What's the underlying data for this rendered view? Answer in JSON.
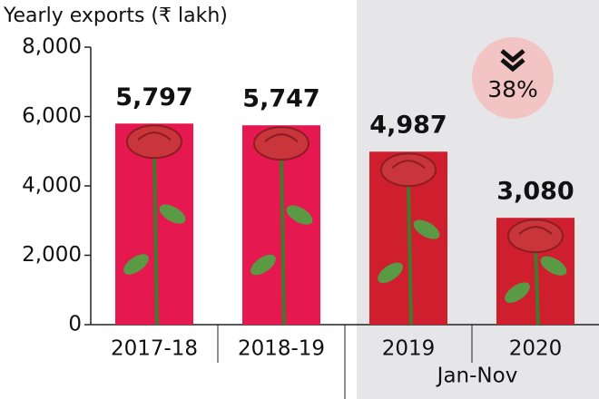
{
  "chart_data": {
    "type": "bar",
    "title": "Yearly exports (₹ lakh)",
    "categories": [
      "2017-18",
      "2018-19",
      "2019",
      "2020"
    ],
    "values": [
      5797,
      5747,
      4987,
      3080
    ],
    "value_labels": [
      "5,797",
      "5,747",
      "4,987",
      "3,080"
    ],
    "colors": [
      "#e5184f",
      "#e5184f",
      "#cf1f2e",
      "#cf1f2e"
    ],
    "ylim": [
      0,
      8000
    ],
    "yticks": [
      0,
      {
        "value": 2000,
        "label": "2,000"
      },
      {
        "value": 4000,
        "label": "4,000"
      },
      {
        "value": 6000,
        "label": "6,000"
      },
      {
        "value": 8000,
        "label": "8,000"
      }
    ],
    "period_note": "Jan-Nov",
    "annotation": "38%"
  }
}
